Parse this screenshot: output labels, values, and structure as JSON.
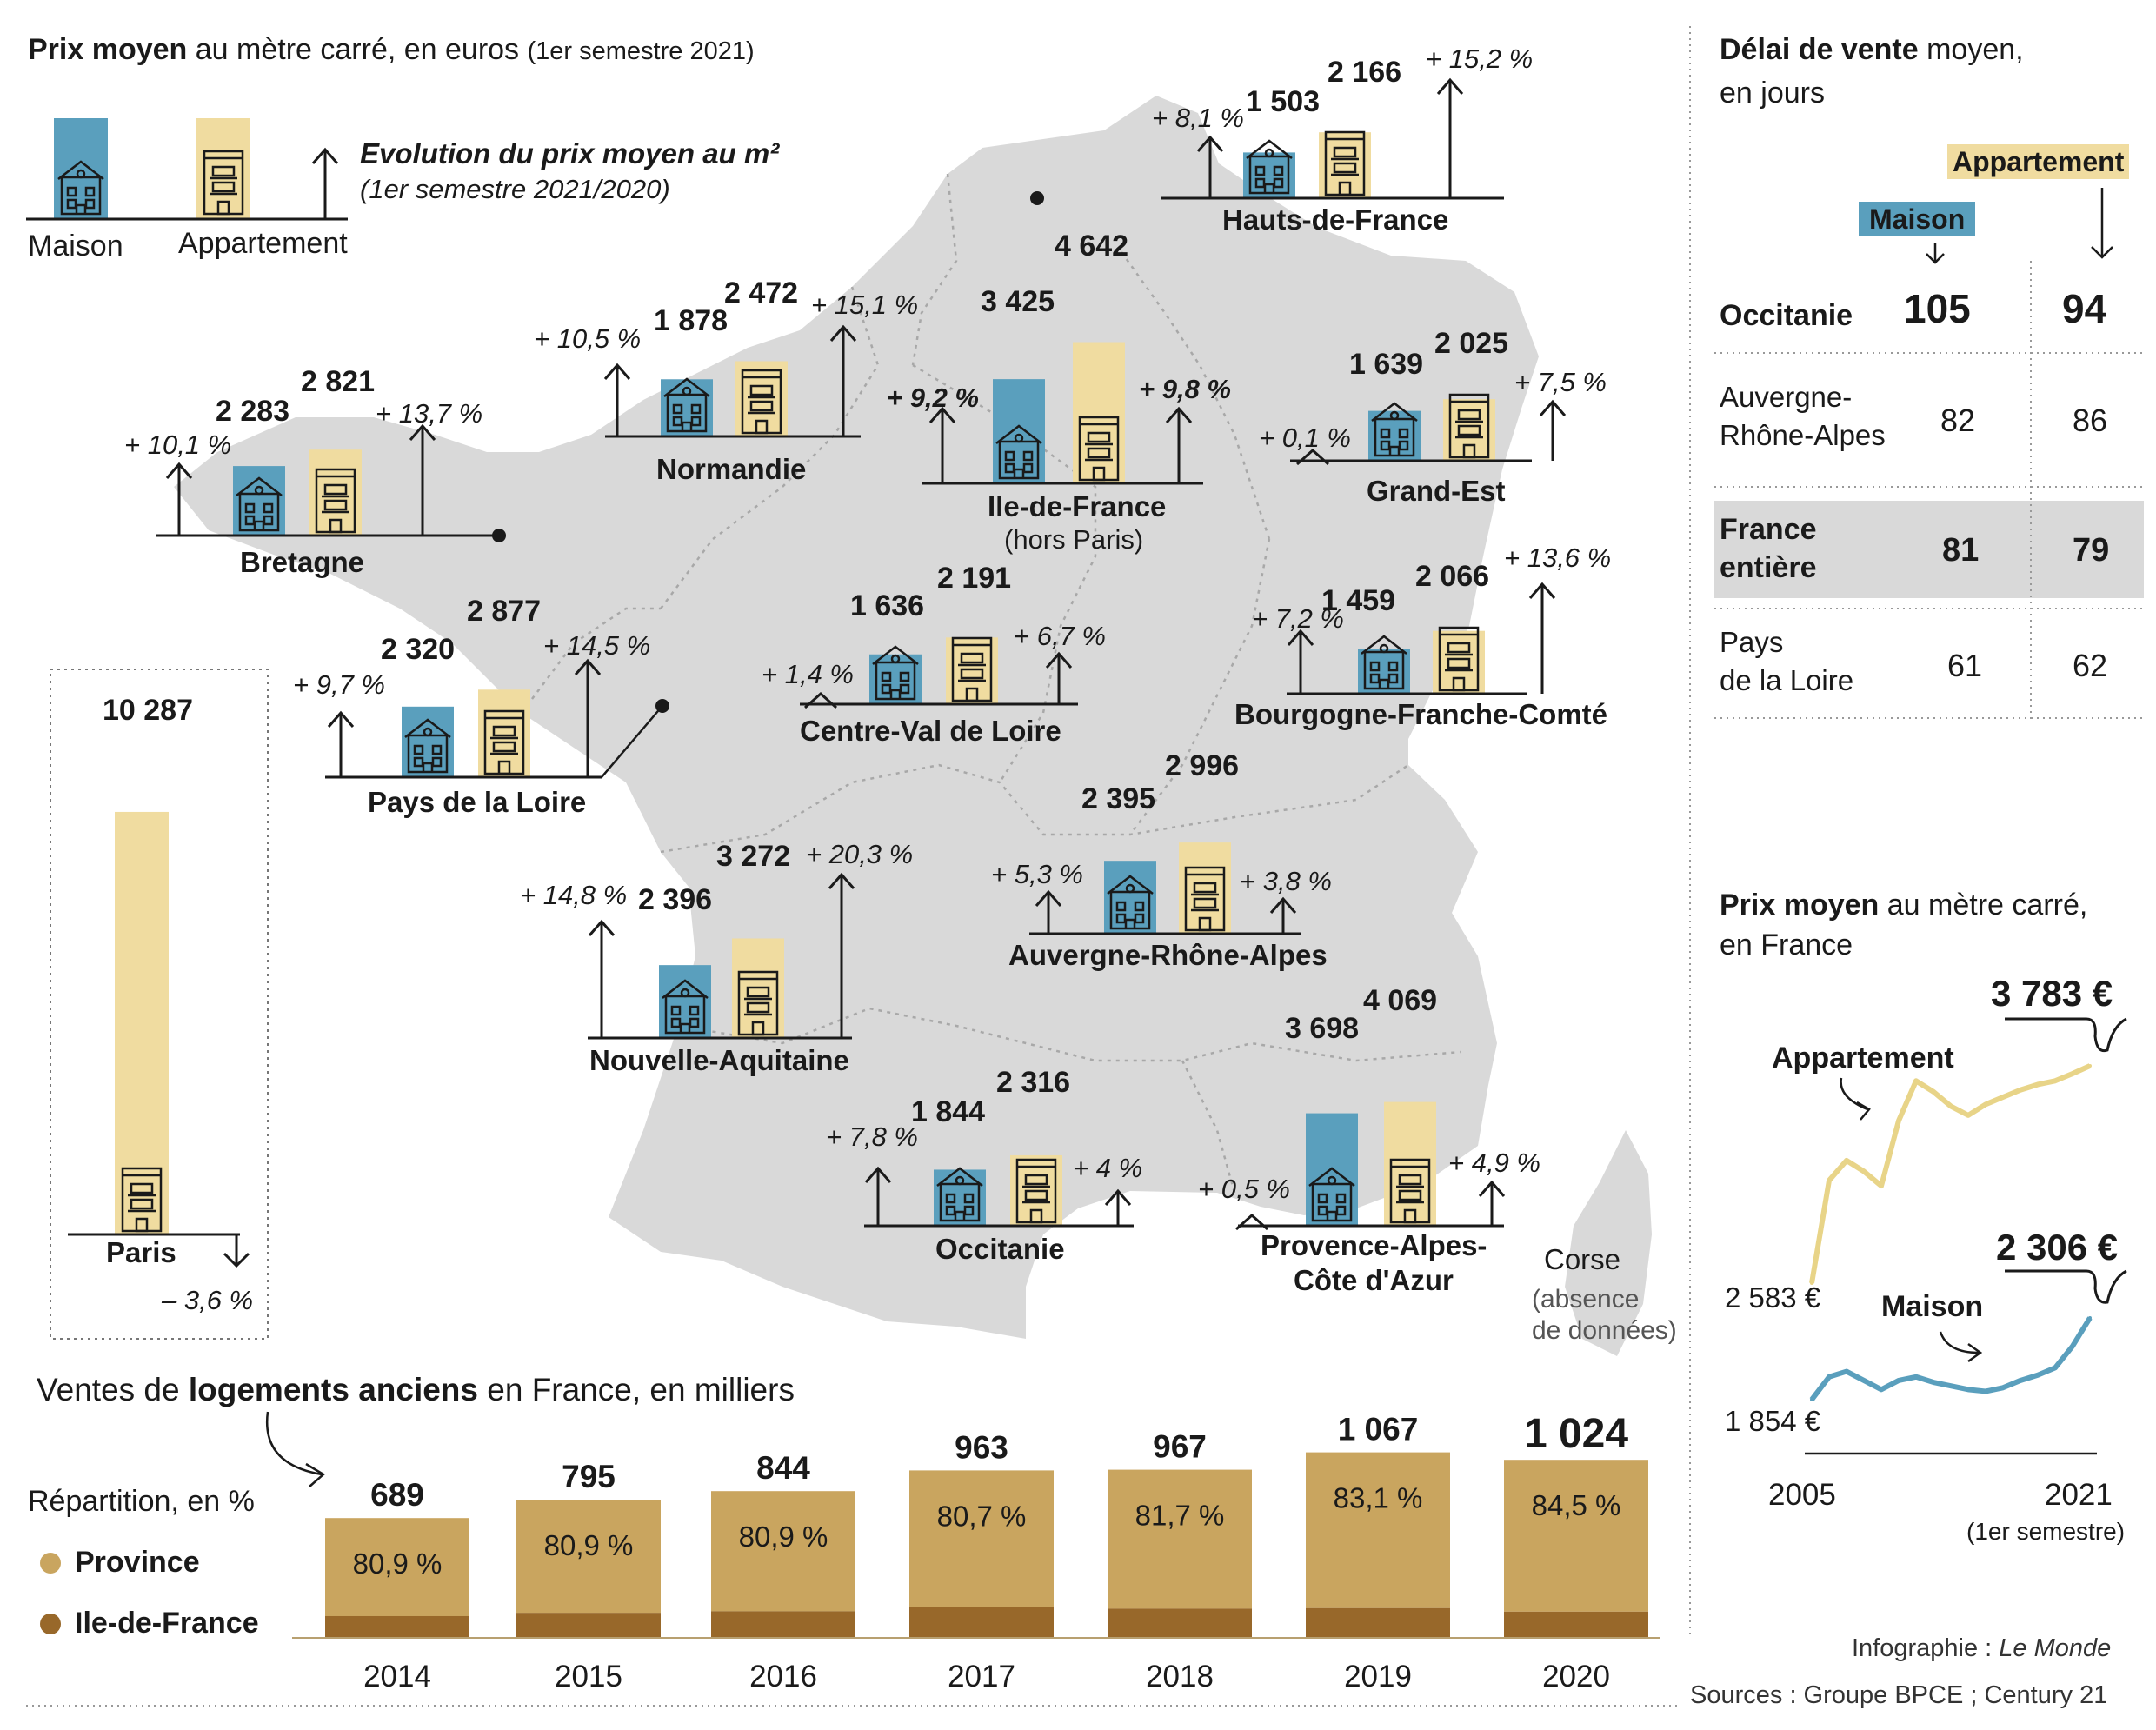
{
  "colors": {
    "maison": "#5a9fbd",
    "appartement": "#f0dca0",
    "map": "#d9d9d9",
    "province": "#c9a55f",
    "idf": "#98682a",
    "highlight": "#d9d9d9",
    "dark": "#1a1a1a"
  },
  "icons": {
    "maison": "house-icon",
    "appartement": "apartment-building-icon",
    "arrow_up": "arrow-up-icon",
    "arrow_down": "arrow-down-icon",
    "tilde": "flat-caret-icon"
  },
  "header": {
    "title_bold": "Prix moyen",
    "title_rest": "au mètre carré, en euros",
    "title_note": "(1er semestre 2021)"
  },
  "legend": {
    "maison": "Maison",
    "appartement": "Appartement",
    "evolution_title": "Evolution du prix moyen au m²",
    "evolution_sub": "(1er semestre 2021/2020)"
  },
  "regions": [
    {
      "name": "Hauts-de-France",
      "maison": "1 503",
      "appartement": "2 166",
      "maison_pct": "+ 8,1 %",
      "appart_pct": "+ 15,2 %"
    },
    {
      "name": "Normandie",
      "maison": "1 878",
      "appartement": "2 472",
      "maison_pct": "+ 10,5 %",
      "appart_pct": "+ 15,1 %"
    },
    {
      "name": "Ile-de-France",
      "sub": "(hors Paris)",
      "maison": "3 425",
      "appartement": "4 642",
      "maison_pct": "+ 9,2 %",
      "appart_pct": "+ 9,8 %"
    },
    {
      "name": "Grand-Est",
      "maison": "1 639",
      "appartement": "2 025",
      "maison_pct": "+ 0,1 %",
      "appart_pct": "+ 7,5 %"
    },
    {
      "name": "Bretagne",
      "maison": "2 283",
      "appartement": "2 821",
      "maison_pct": "+ 10,1 %",
      "appart_pct": "+ 13,7 %"
    },
    {
      "name": "Centre-Val de Loire",
      "maison": "1 636",
      "appartement": "2 191",
      "maison_pct": "+ 1,4 %",
      "appart_pct": "+ 6,7 %"
    },
    {
      "name": "Bourgogne-Franche-Comté",
      "maison": "1 459",
      "appartement": "2 066",
      "maison_pct": "+ 7,2 %",
      "appart_pct": "+ 13,6 %"
    },
    {
      "name": "Pays de la Loire",
      "maison": "2 320",
      "appartement": "2 877",
      "maison_pct": "+ 9,7 %",
      "appart_pct": "+ 14,5 %"
    },
    {
      "name": "Auvergne-Rhône-Alpes",
      "maison": "2 395",
      "appartement": "2 996",
      "maison_pct": "+ 5,3 %",
      "appart_pct": "+ 3,8 %"
    },
    {
      "name": "Nouvelle-Aquitaine",
      "maison": "2 396",
      "appartement": "3 272",
      "maison_pct": "+ 14,8 %",
      "appart_pct": "+ 20,3 %"
    },
    {
      "name": "Occitanie",
      "maison": "1 844",
      "appartement": "2 316",
      "maison_pct": "+ 7,8 %",
      "appart_pct": "+ 4 %"
    },
    {
      "name": "Provence-Alpes-",
      "name2": "Côte d'Azur",
      "maison": "3 698",
      "appartement": "4 069",
      "maison_pct": "+ 0,5 %",
      "appart_pct": "+ 4,9 %"
    }
  ],
  "paris": {
    "name": "Paris",
    "appartement": "10 287",
    "pct": "– 3,6 %"
  },
  "corse": {
    "name": "Corse",
    "note1": "(absence",
    "note2": "de données)"
  },
  "delai": {
    "title_bold": "Délai de vente",
    "title_rest": "moyen,",
    "title_line2": "en jours",
    "col_maison": "Maison",
    "col_appart": "Appartement",
    "rows": [
      {
        "l1": "Occitanie",
        "l2": "",
        "maison": "105",
        "appart": "94"
      },
      {
        "l1": "Auvergne-",
        "l2": "Rhône-Alpes",
        "maison": "82",
        "appart": "86"
      },
      {
        "l1": "France",
        "l2": "entière",
        "maison": "81",
        "appart": "79"
      },
      {
        "l1": "Pays",
        "l2": "de la Loire",
        "maison": "61",
        "appart": "62"
      }
    ]
  },
  "prix_france": {
    "title_bold": "Prix moyen",
    "title_rest": "au mètre carré,",
    "title_line2": "en France",
    "appart_label": "Appartement",
    "maison_label": "Maison",
    "appart_end": "3 783 €",
    "appart_start": "2 583 €",
    "maison_end": "2 306 €",
    "maison_start": "1 854 €",
    "x_start": "2005",
    "x_end": "2021",
    "x_end_note": "(1er semestre)"
  },
  "ventes": {
    "title_pre": "Ventes de",
    "title_bold": "logements anciens",
    "title_post": "en France, en milliers",
    "repartition": "Répartition, en %",
    "province": "Province",
    "idf": "Ile-de-France"
  },
  "credits": {
    "infographie": "Infographie :",
    "le_monde": "Le Monde",
    "sources": "Sources : Groupe BPCE ; Century 21"
  },
  "chart_data": [
    {
      "type": "bar",
      "title": "Ventes de logements anciens en France, en milliers",
      "categories": [
        "2014",
        "2015",
        "2016",
        "2017",
        "2018",
        "2019",
        "2020"
      ],
      "values": [
        689,
        795,
        844,
        963,
        967,
        1067,
        1024
      ],
      "value_labels": [
        "689",
        "795",
        "844",
        "963",
        "967",
        "1 067",
        "1 024"
      ],
      "province_pct": [
        "80,9 %",
        "80,9 %",
        "80,9 %",
        "80,7 %",
        "81,7 %",
        "83,1 %",
        "84,5 %"
      ],
      "province_pct_values": [
        80.9,
        80.9,
        80.9,
        80.7,
        81.7,
        83.1,
        84.5
      ]
    },
    {
      "type": "line",
      "title": "Prix moyen au mètre carré, en France",
      "x": [
        "2005",
        "2006",
        "2007",
        "2008",
        "2009",
        "2010",
        "2011",
        "2012",
        "2013",
        "2014",
        "2015",
        "2016",
        "2017",
        "2018",
        "2019",
        "2020",
        "2021"
      ],
      "series": [
        {
          "name": "Appartement",
          "values": [
            2583,
            3150,
            3260,
            3200,
            3120,
            3480,
            3700,
            3640,
            3560,
            3510,
            3570,
            3610,
            3650,
            3680,
            3700,
            3740,
            3783
          ]
        },
        {
          "name": "Maison",
          "values": [
            1854,
            1980,
            2010,
            1960,
            1910,
            1960,
            1980,
            1950,
            1930,
            1910,
            1900,
            1920,
            1960,
            1990,
            2030,
            2150,
            2306
          ]
        }
      ]
    }
  ]
}
